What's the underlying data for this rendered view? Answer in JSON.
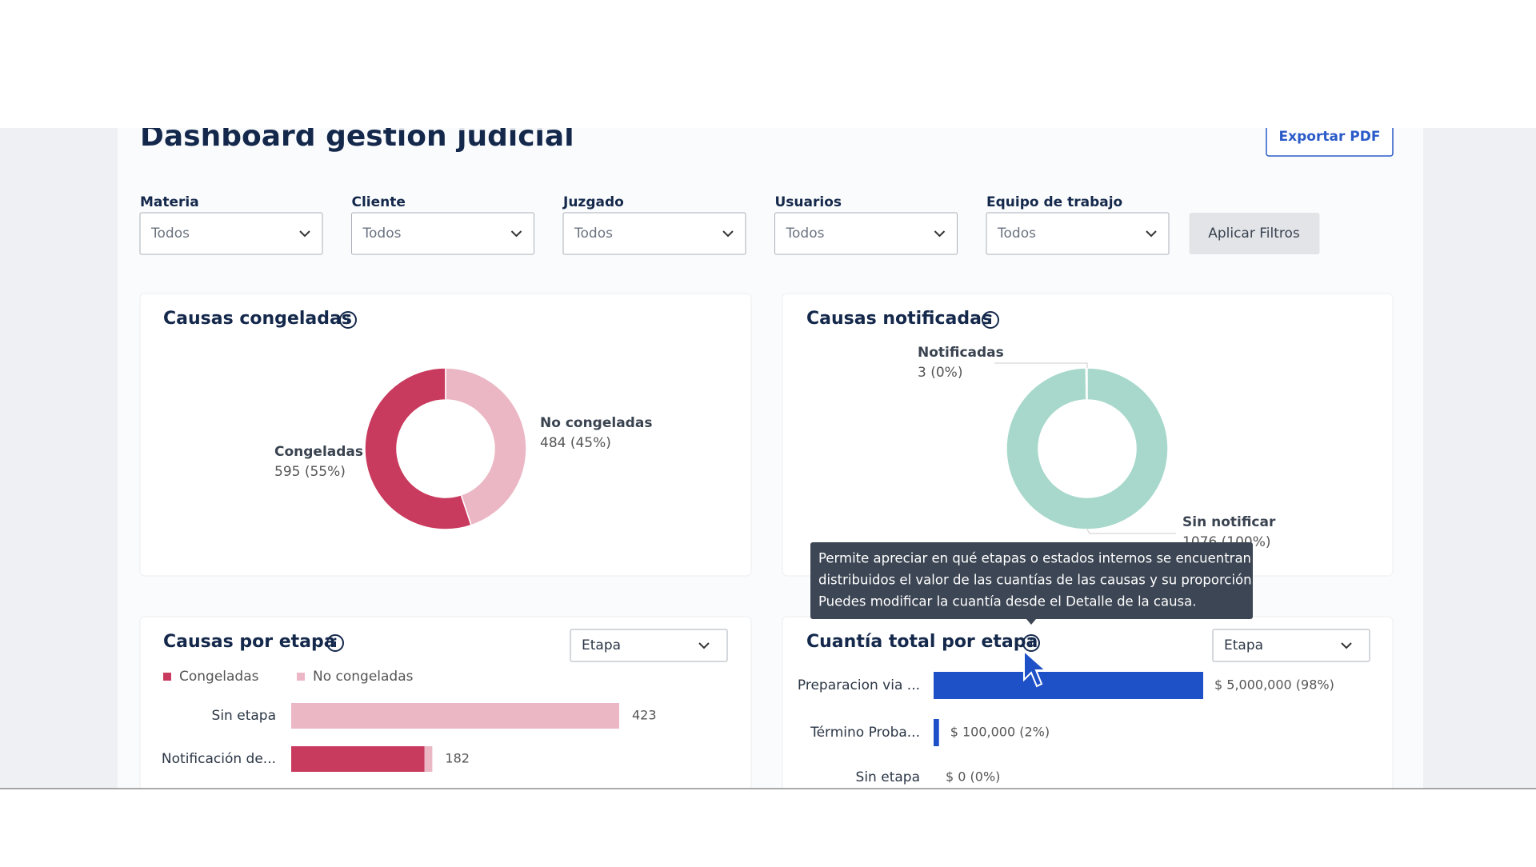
{
  "header": {
    "title": "Dashboard gestión judicial",
    "export_button": "Exportar PDF"
  },
  "filters": {
    "items": [
      {
        "label": "Materia",
        "value": "Todos"
      },
      {
        "label": "Cliente",
        "value": "Todos"
      },
      {
        "label": "Juzgado",
        "value": "Todos"
      },
      {
        "label": "Usuarios",
        "value": "Todos"
      },
      {
        "label": "Equipo de trabajo",
        "value": "Todos"
      }
    ],
    "apply_button": "Aplicar Filtros"
  },
  "chart_data": [
    {
      "type": "donut",
      "title": "Causas congeladas",
      "categories": [
        "Congeladas",
        "No congeladas"
      ],
      "values": [
        595,
        484
      ],
      "value_labels": [
        "595 (55%)",
        "484 (45%)"
      ],
      "colors": [
        "#c93b5e",
        "#ebb7c5"
      ]
    },
    {
      "type": "donut",
      "title": "Causas notificadas",
      "categories": [
        "Notificadas",
        "Sin notificar"
      ],
      "values": [
        3,
        1076
      ],
      "value_labels": [
        "3 (0%)",
        "1076 (100%)"
      ],
      "colors": [
        "#8fcfbd",
        "#a7d8cb"
      ]
    },
    {
      "type": "stacked-bar",
      "title": "Causas por etapa",
      "dropdown": "Etapa",
      "categories": [
        "Sin etapa",
        "Notificación de..."
      ],
      "series": [
        {
          "name": "Congeladas",
          "color": "#c93b5e",
          "values": [
            0,
            172
          ]
        },
        {
          "name": "No congeladas",
          "color": "#ebb7c5",
          "values": [
            423,
            10
          ]
        }
      ],
      "totals": [
        423,
        182
      ]
    },
    {
      "type": "hbar",
      "title": "Cuantía total por etapa",
      "dropdown": "Etapa",
      "categories": [
        "Preparacion via ...",
        "Término Proba...",
        "Sin etapa"
      ],
      "values": [
        5000000,
        100000,
        0
      ],
      "value_labels": [
        "$ 5,000,000 (98%)",
        "$ 100,000 (2%)",
        "$ 0 (0%)"
      ],
      "color": "#1e50c8"
    }
  ],
  "tooltip": {
    "lines": [
      "Permite apreciar en qué etapas o estados internos se encuentran",
      "distribuidos el valor de las cuantías de las causas y su proporción.",
      "Puedes modificar la cuantía desde el Detalle de la causa."
    ]
  }
}
